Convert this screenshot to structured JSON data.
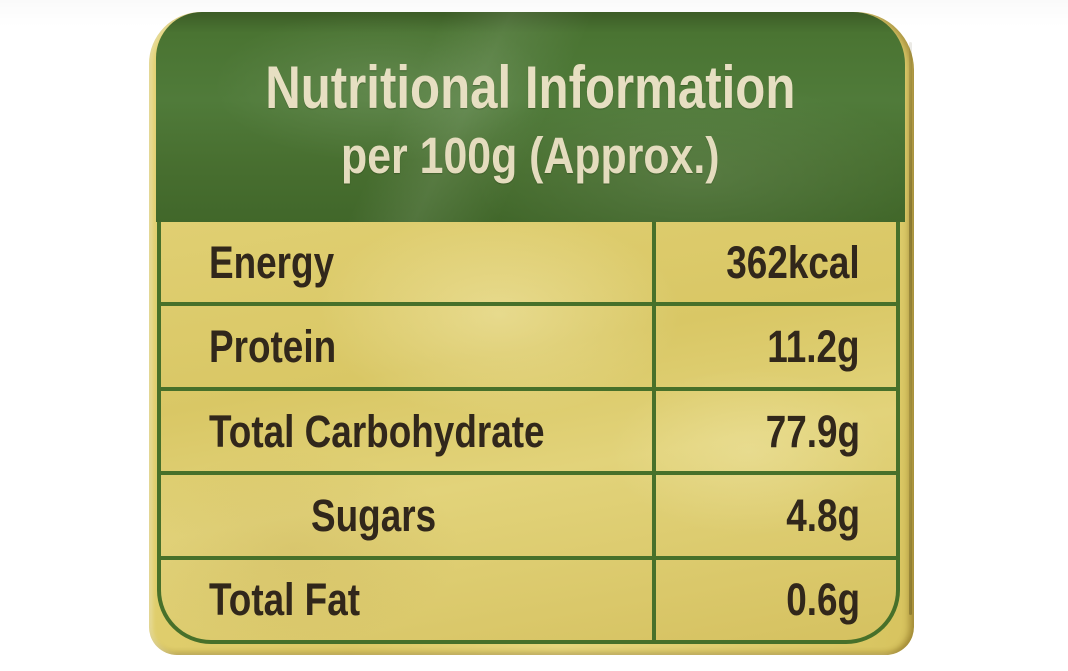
{
  "label": {
    "title_line1": "Nutritional Information",
    "title_line2": "per 100g (Approx.)",
    "rows": [
      {
        "name": "Energy",
        "value": "362kcal",
        "indent": false
      },
      {
        "name": "Protein",
        "value": "11.2g",
        "indent": false
      },
      {
        "name": "Total Carbohydrate",
        "value": "77.9g",
        "indent": false
      },
      {
        "name": "Sugars",
        "value": "4.8g",
        "indent": true
      },
      {
        "name": "Total Fat",
        "value": "0.6g",
        "indent": false
      }
    ],
    "colors": {
      "header_green": "#4d7735",
      "header_green_dark": "#3c5c26",
      "header_text_cream": "#e7dfc2",
      "bag_yellow": "#dcc965",
      "grid_green": "#47702a",
      "row_text_dark": "#31271b",
      "background_white": "#ffffff"
    }
  }
}
